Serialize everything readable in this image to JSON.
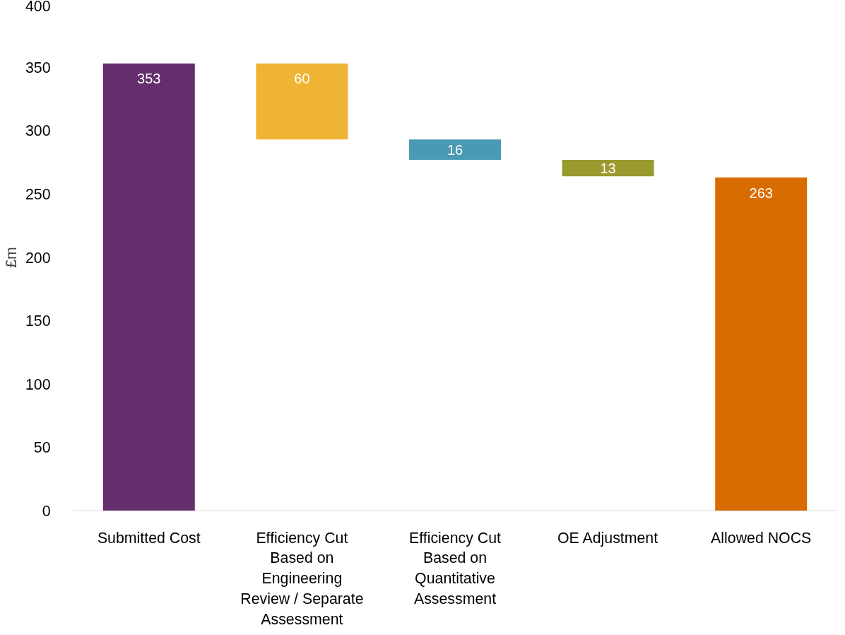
{
  "chart_data": {
    "type": "bar",
    "ylabel": "£m",
    "categories": [
      "Submitted Cost",
      "Efficiency Cut Based on Engineering Review / Separate Assessment",
      "Efficiency Cut Based on Quantitative Assessment",
      "OE Adjustment",
      "Allowed NOCS"
    ],
    "values": [
      353,
      60,
      16,
      13,
      263
    ],
    "base": [
      0,
      293,
      277,
      264,
      0
    ],
    "colors": [
      "#652d6b",
      "#f0b435",
      "#4a9ab5",
      "#9a9a2e",
      "#d96c00"
    ],
    "ylim": [
      0,
      400
    ],
    "yticks": [
      0,
      50,
      100,
      150,
      200,
      250,
      300,
      350,
      400
    ],
    "data_labels": true,
    "grid": false
  }
}
